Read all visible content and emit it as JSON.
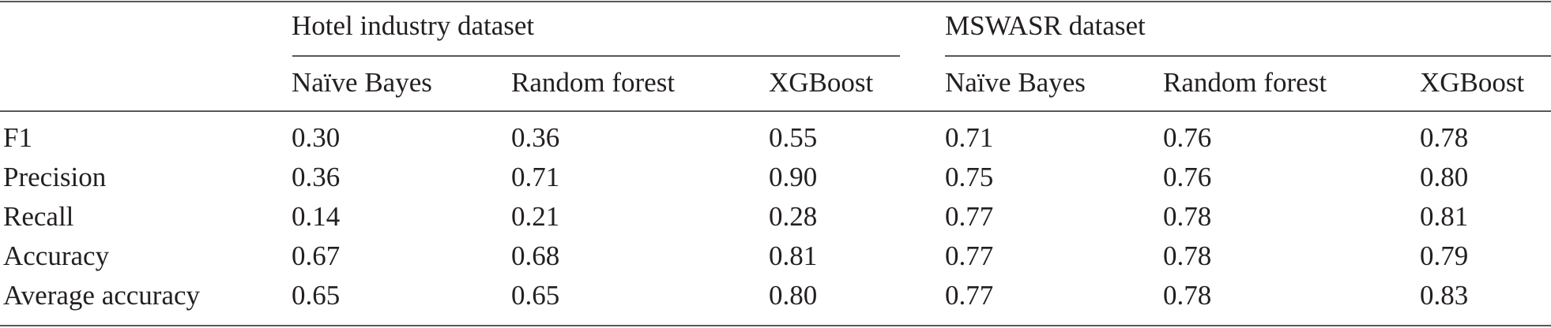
{
  "header": {
    "groups": [
      "Hotel industry dataset",
      "MSWASR dataset"
    ],
    "columns": [
      "Naïve Bayes",
      "Random forest",
      "XGBoost",
      "Naïve Bayes",
      "Random forest",
      "XGBoost"
    ]
  },
  "table": {
    "rows": [
      [
        "F1",
        "0.30",
        "0.36",
        "0.55",
        "0.71",
        "0.76",
        "0.78"
      ],
      [
        "Precision",
        "0.36",
        "0.71",
        "0.90",
        "0.75",
        "0.76",
        "0.80"
      ],
      [
        "Recall",
        "0.14",
        "0.21",
        "0.28",
        "0.77",
        "0.78",
        "0.81"
      ],
      [
        "Accuracy",
        "0.67",
        "0.68",
        "0.81",
        "0.77",
        "0.78",
        "0.79"
      ],
      [
        "Average accuracy",
        "0.65",
        "0.65",
        "0.80",
        "0.77",
        "0.78",
        "0.83"
      ]
    ]
  }
}
